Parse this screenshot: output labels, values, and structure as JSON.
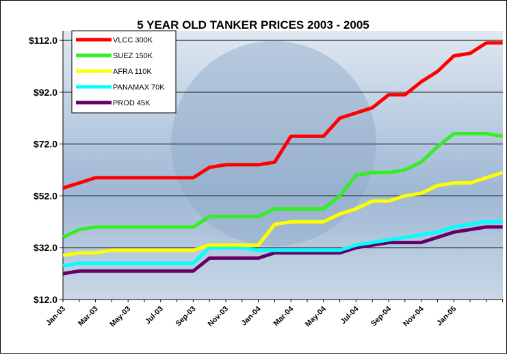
{
  "chart_data": {
    "type": "line",
    "title": "5 YEAR OLD TANKER PRICES 2003 - 2005",
    "categories": [
      "Jan-03",
      null,
      "Mar-03",
      null,
      "May-03",
      null,
      "Jul-03",
      null,
      "Sep-03",
      null,
      "Nov-03",
      null,
      "Jan-04",
      null,
      "Mar-04",
      null,
      "May-04",
      null,
      "Jul-04",
      null,
      "Sep-04",
      null,
      "Nov-04",
      null,
      "Jan-05",
      null,
      null,
      null
    ],
    "series": [
      {
        "name": "VLCC 300K",
        "color": "#ff0000",
        "values": [
          55,
          57,
          59,
          59,
          59,
          59,
          59,
          59,
          59,
          63,
          64,
          64,
          64,
          65,
          75,
          75,
          75,
          82,
          84,
          86,
          91,
          91,
          96,
          100,
          106,
          107,
          111,
          111
        ]
      },
      {
        "name": "SUEZ 150K",
        "color": "#33ee22",
        "values": [
          36,
          39,
          40,
          40,
          40,
          40,
          40,
          40,
          40,
          44,
          44,
          44,
          44,
          47,
          47,
          47,
          47,
          52,
          60,
          61,
          61,
          62,
          65,
          71,
          76,
          76,
          76,
          75
        ]
      },
      {
        "name": "AFRA 110K",
        "color": "#ffff00",
        "values": [
          29,
          30,
          30,
          31,
          31,
          31,
          31,
          31,
          31,
          33,
          33,
          33,
          33,
          41,
          42,
          42,
          42,
          45,
          47,
          50,
          50,
          52,
          53,
          56,
          57,
          57,
          59,
          61
        ]
      },
      {
        "name": "PANAMAX 70K",
        "color": "#00ffff",
        "values": [
          25,
          26,
          26,
          26,
          26,
          26,
          26,
          26,
          26,
          32,
          32,
          32,
          31,
          31,
          31,
          31,
          31,
          31,
          33,
          34,
          35,
          36,
          37,
          38,
          40,
          41,
          42,
          42
        ]
      },
      {
        "name": "PROD 45K",
        "color": "#660066",
        "values": [
          22,
          23,
          23,
          23,
          23,
          23,
          23,
          23,
          23,
          28,
          28,
          28,
          28,
          30,
          30,
          30,
          30,
          30,
          32,
          33,
          34,
          34,
          34,
          36,
          38,
          39,
          40,
          40
        ]
      }
    ],
    "ylim": [
      12,
      115.7
    ],
    "yticks": [
      {
        "value": 12,
        "label": "$12.0"
      },
      {
        "value": 32,
        "label": "$32.0"
      },
      {
        "value": 52,
        "label": "$52.0"
      },
      {
        "value": 72,
        "label": "$72.0"
      },
      {
        "value": 92,
        "label": "$92.0"
      },
      {
        "value": 112,
        "label": "$112.0"
      }
    ],
    "grid": true,
    "legend": "top-left"
  }
}
